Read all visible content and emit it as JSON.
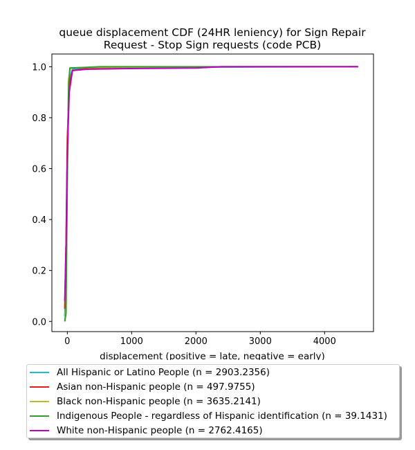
{
  "chart_data": {
    "type": "line",
    "title": "queue displacement CDF (24HR leniency) for Sign Repair Request - Stop Sign  requests (code PCB)",
    "title_lines": [
      "queue displacement CDF (24HR leniency) for Sign Repair",
      "Request - Stop Sign  requests (code PCB)"
    ],
    "xlabel": "displacement (positive = late, negative = early)",
    "ylabel": "",
    "xlim": [
      -240,
      4760
    ],
    "ylim": [
      -0.04,
      1.05
    ],
    "xticks": [
      0,
      1000,
      2000,
      3000,
      4000
    ],
    "yticks": [
      0.0,
      0.2,
      0.4,
      0.6,
      0.8,
      1.0
    ],
    "grid": false,
    "legend_position": "below",
    "series": [
      {
        "name": "All Hispanic or Latino People (n = 2903.2356)",
        "color": "#17becf",
        "points": [
          [
            -40,
            0.02
          ],
          [
            -20,
            0.2
          ],
          [
            0,
            0.7
          ],
          [
            30,
            0.95
          ],
          [
            80,
            0.99
          ],
          [
            300,
            0.995
          ],
          [
            1000,
            0.997
          ],
          [
            2000,
            0.998
          ],
          [
            3000,
            0.999
          ],
          [
            4520,
            1.0
          ]
        ]
      },
      {
        "name": "Asian non-Hispanic people (n = 497.9755)",
        "color": "#e41a1c",
        "points": [
          [
            -40,
            0.05
          ],
          [
            -20,
            0.3
          ],
          [
            0,
            0.72
          ],
          [
            30,
            0.93
          ],
          [
            80,
            0.985
          ],
          [
            300,
            0.993
          ],
          [
            1000,
            0.996
          ],
          [
            2000,
            0.997
          ],
          [
            2400,
            1.0
          ],
          [
            4520,
            1.0
          ]
        ]
      },
      {
        "name": "Black non-Hispanic people (n = 3635.2141)",
        "color": "#bcbd22",
        "points": [
          [
            -40,
            0.0
          ],
          [
            -20,
            0.05
          ],
          [
            0,
            0.6
          ],
          [
            20,
            0.95
          ],
          [
            50,
            0.995
          ],
          [
            300,
            0.997
          ],
          [
            1000,
            0.998
          ],
          [
            2000,
            0.999
          ],
          [
            3000,
            1.0
          ],
          [
            4520,
            1.0
          ]
        ]
      },
      {
        "name": "Indigenous People - regardless of Hispanic identification (n = 39.1431)",
        "color": "#2ca02c",
        "points": [
          [
            -40,
            0.0
          ],
          [
            -20,
            0.03
          ],
          [
            0,
            0.55
          ],
          [
            20,
            0.93
          ],
          [
            40,
            0.995
          ],
          [
            500,
            1.0
          ],
          [
            2000,
            1.0
          ],
          [
            4520,
            1.0
          ]
        ]
      },
      {
        "name": "White non-Hispanic people (n = 2762.4165)",
        "color": "#c000c0",
        "points": [
          [
            -40,
            0.08
          ],
          [
            -20,
            0.3
          ],
          [
            0,
            0.65
          ],
          [
            30,
            0.9
          ],
          [
            80,
            0.985
          ],
          [
            300,
            0.99
          ],
          [
            1000,
            0.993
          ],
          [
            2000,
            0.995
          ],
          [
            2400,
            1.0
          ],
          [
            4520,
            1.0
          ]
        ]
      }
    ]
  }
}
